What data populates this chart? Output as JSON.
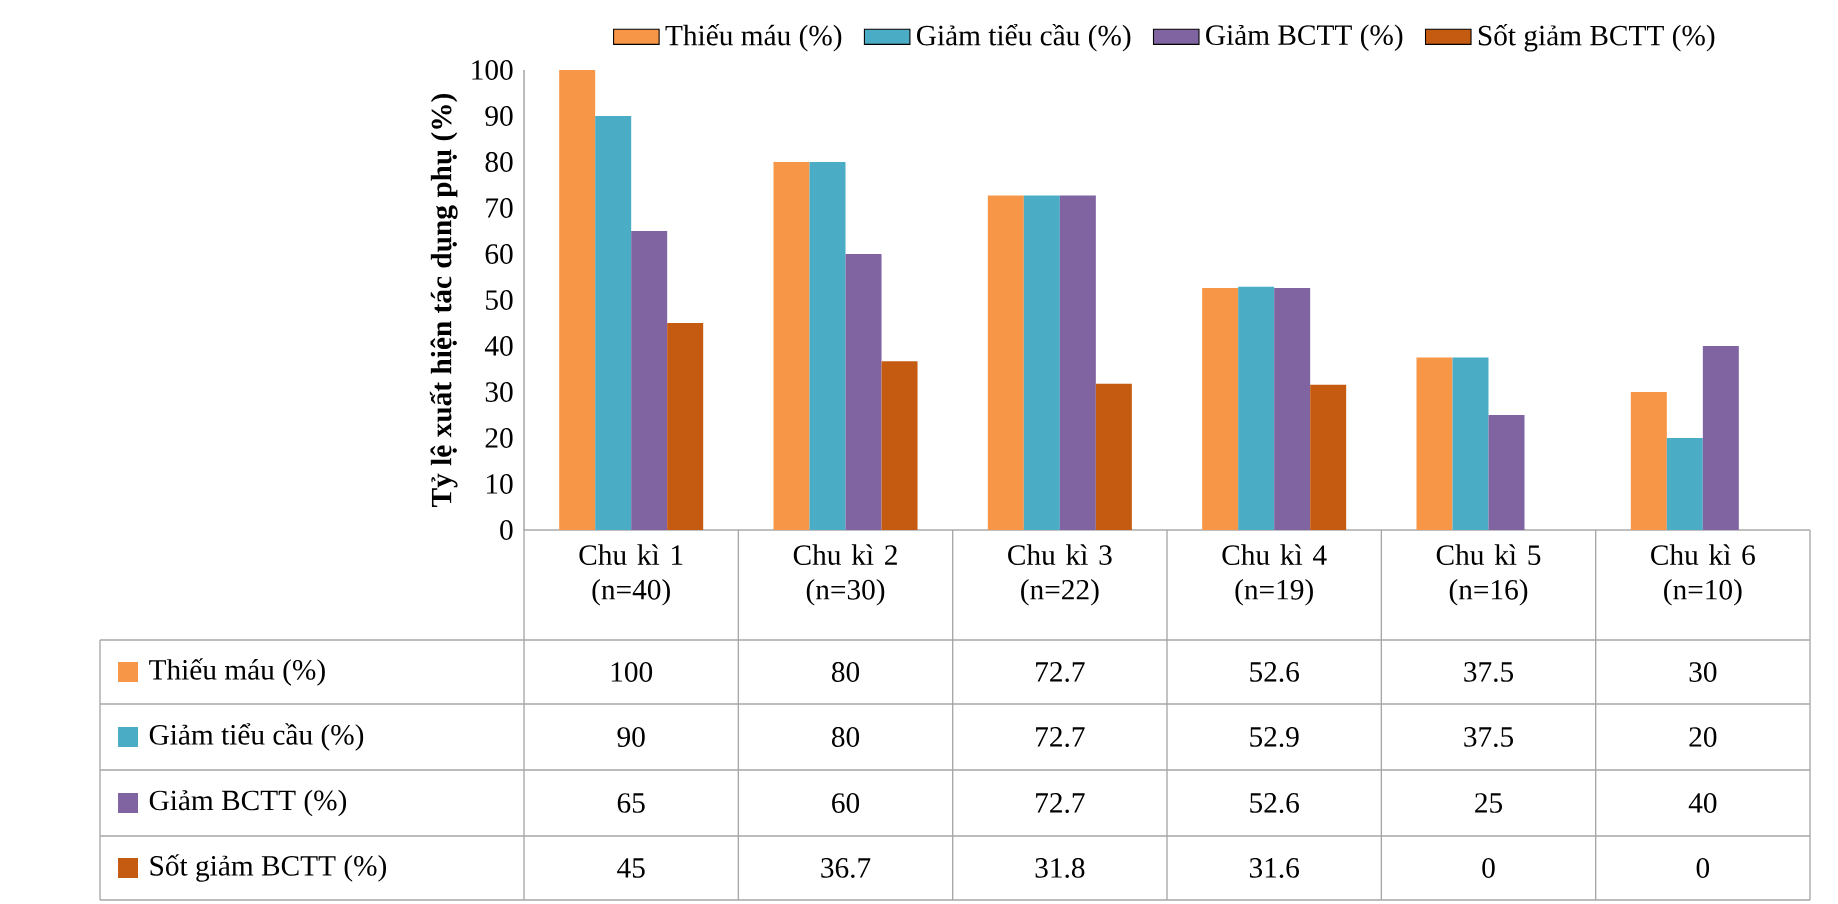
{
  "chart_data": {
    "type": "bar",
    "ylabel": "Tỷ lệ xuất hiện tác dụng phụ (%)",
    "categories": [
      "Chu kì 1 (n=40)",
      "Chu kì 2 (n=30)",
      "Chu kì 3 (n=22)",
      "Chu kì 4 (n=19)",
      "Chu kì 5 (n=16)",
      "Chu kì 6 (n=10)"
    ],
    "series": [
      {
        "name": "Thiếu máu (%)",
        "color": "#f79646",
        "values": [
          100,
          80,
          72.7,
          52.6,
          37.5,
          30
        ]
      },
      {
        "name": "Giảm tiểu cầu (%)",
        "color": "#4bacc6",
        "values": [
          90,
          80,
          72.7,
          52.9,
          37.5,
          20
        ]
      },
      {
        "name": "Giảm BCTT (%)",
        "color": "#8064a2",
        "values": [
          65,
          60,
          72.7,
          52.6,
          25,
          40
        ]
      },
      {
        "name": "Sốt giảm BCTT (%)",
        "color": "#c55a11",
        "values": [
          45,
          36.7,
          31.8,
          31.6,
          0,
          0
        ]
      }
    ],
    "ylim": [
      0,
      100
    ],
    "yticks": [
      0,
      10,
      20,
      30,
      40,
      50,
      60,
      70,
      80,
      90,
      100
    ],
    "legend": "top",
    "data_labels": true
  }
}
